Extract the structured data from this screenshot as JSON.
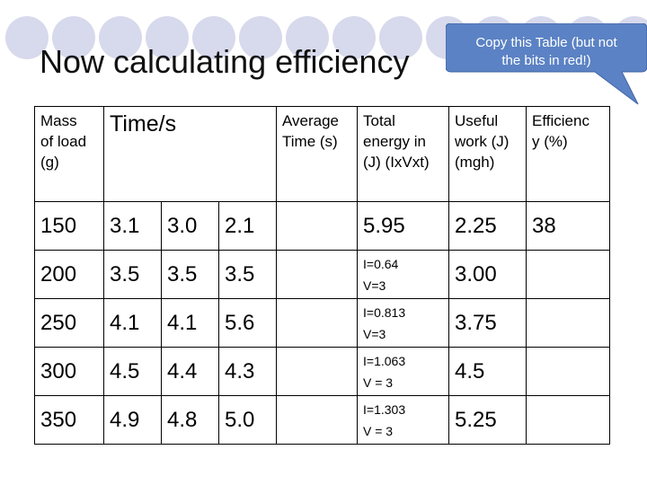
{
  "slide": {
    "title": "Now calculating efficiency",
    "callout": {
      "line1": "Copy this Table (but not",
      "line2": "the bits in red!)",
      "fill": "#5b82c4",
      "stroke": "#3f64a6"
    },
    "circle_color": "#d7d9ec"
  },
  "table": {
    "headers": {
      "mass": [
        "Mass",
        "of load",
        "(g)"
      ],
      "time": "Time/s",
      "average": [
        "Average",
        "Time (s)"
      ],
      "total": [
        "Total",
        "energy in",
        "(J) (IxVxt)"
      ],
      "useful": [
        "Useful",
        "work (J)",
        "(mgh)"
      ],
      "efficiency": [
        "Efficienc",
        "y (%)"
      ]
    },
    "rows": [
      {
        "mass": "150",
        "t1": "3.1",
        "t2": "3.0",
        "t3": "2.1",
        "avg": "",
        "total": "5.95",
        "total_i": "",
        "total_v": "",
        "useful": "2.25",
        "eff": "38"
      },
      {
        "mass": "200",
        "t1": "3.5",
        "t2": "3.5",
        "t3": "3.5",
        "avg": "",
        "total": "",
        "total_i": "I=0.64",
        "total_v": "V=3",
        "useful": "3.00",
        "eff": ""
      },
      {
        "mass": "250",
        "t1": "4.1",
        "t2": "4.1",
        "t3": "5.6",
        "avg": "",
        "total": "",
        "total_i": "I=0.813",
        "total_v": "V=3",
        "useful": "3.75",
        "eff": ""
      },
      {
        "mass": "300",
        "t1": "4.5",
        "t2": "4.4",
        "t3": "4.3",
        "avg": "",
        "total": "",
        "total_i": "I=1.063",
        "total_v": "V = 3",
        "useful": "4.5",
        "eff": ""
      },
      {
        "mass": "350",
        "t1": "4.9",
        "t2": "4.8",
        "t3": "5.0",
        "avg": "",
        "total": "",
        "total_i": "I=1.303",
        "total_v": "V = 3",
        "useful": "5.25",
        "eff": ""
      }
    ]
  }
}
